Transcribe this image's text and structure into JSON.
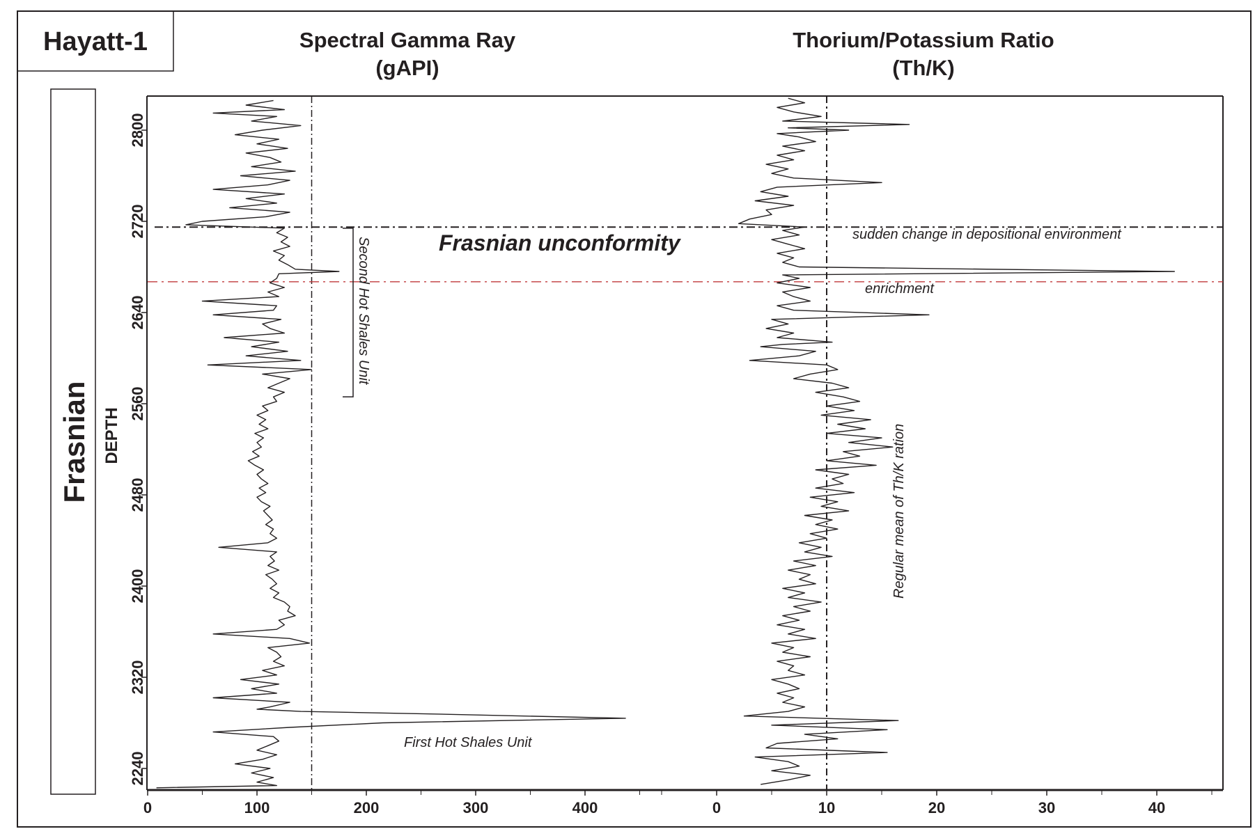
{
  "well_name": "Hayatt-1",
  "formation_label": "Frasnian",
  "depth_label": "DEPTH",
  "chart_data": [
    {
      "type": "line",
      "orientation": "vertical-log",
      "title": "Spectral Gamma Ray",
      "unit_label": "(gAPI)",
      "xlabel": "Spectral Gamma Ray (gAPI)",
      "ylabel": "DEPTH",
      "xlim": [
        0,
        480
      ],
      "ylim": [
        2830,
        2222
      ],
      "x_ticks": [
        0,
        100,
        200,
        300,
        400
      ],
      "x_minor_ticks": [
        50,
        150,
        250,
        350,
        450
      ],
      "y_ticks": [
        2800,
        2720,
        2640,
        2560,
        2480,
        2400,
        2320,
        2240
      ],
      "reference_line": {
        "value": 150,
        "style": "dash-dot"
      },
      "series": [
        {
          "name": "GR",
          "depth": [
            2826,
            2822,
            2818,
            2815,
            2812,
            2808,
            2804,
            2800,
            2796,
            2792,
            2788,
            2784,
            2780,
            2776,
            2772,
            2768,
            2764,
            2760,
            2756,
            2752,
            2748,
            2744,
            2740,
            2736,
            2732,
            2728,
            2724,
            2720,
            2717,
            2714,
            2710,
            2706,
            2702,
            2698,
            2694,
            2690,
            2686,
            2682,
            2678,
            2676,
            2674,
            2670,
            2666,
            2662,
            2658,
            2654,
            2650,
            2646,
            2642,
            2638,
            2634,
            2630,
            2626,
            2622,
            2618,
            2614,
            2610,
            2606,
            2602,
            2598,
            2594,
            2590,
            2586,
            2582,
            2578,
            2574,
            2570,
            2566,
            2562,
            2558,
            2554,
            2550,
            2546,
            2542,
            2538,
            2534,
            2530,
            2526,
            2522,
            2518,
            2514,
            2510,
            2506,
            2502,
            2498,
            2494,
            2490,
            2486,
            2482,
            2478,
            2474,
            2470,
            2466,
            2462,
            2458,
            2454,
            2450,
            2446,
            2442,
            2438,
            2434,
            2430,
            2426,
            2422,
            2418,
            2414,
            2410,
            2406,
            2402,
            2398,
            2394,
            2390,
            2386,
            2382,
            2378,
            2374,
            2370,
            2366,
            2362,
            2358,
            2354,
            2350,
            2346,
            2342,
            2338,
            2334,
            2330,
            2326,
            2322,
            2318,
            2314,
            2310,
            2306,
            2302,
            2298,
            2294,
            2292,
            2290,
            2288,
            2284,
            2280,
            2276,
            2272,
            2268,
            2264,
            2260,
            2256,
            2252,
            2248,
            2244,
            2240,
            2236,
            2232,
            2228,
            2225,
            2223
          ],
          "values": [
            115,
            90,
            125,
            60,
            118,
            95,
            140,
            105,
            80,
            120,
            100,
            128,
            90,
            112,
            122,
            95,
            135,
            85,
            130,
            110,
            60,
            125,
            90,
            118,
            75,
            130,
            108,
            50,
            35,
            125,
            118,
            128,
            122,
            130,
            115,
            125,
            120,
            128,
            135,
            175,
            120,
            118,
            112,
            125,
            110,
            120,
            50,
            118,
            115,
            60,
            122,
            105,
            112,
            125,
            70,
            120,
            95,
            128,
            90,
            140,
            55,
            150,
            105,
            130,
            120,
            110,
            125,
            115,
            118,
            105,
            110,
            100,
            108,
            102,
            110,
            98,
            106,
            100,
            104,
            96,
            102,
            92,
            98,
            106,
            100,
            104,
            110,
            102,
            108,
            100,
            104,
            112,
            106,
            110,
            114,
            108,
            115,
            112,
            118,
            110,
            65,
            118,
            112,
            116,
            110,
            120,
            108,
            114,
            118,
            112,
            120,
            115,
            125,
            130,
            128,
            135,
            120,
            125,
            118,
            60,
            130,
            148,
            110,
            118,
            122,
            115,
            125,
            105,
            118,
            85,
            120,
            95,
            118,
            60,
            130,
            112,
            100,
            140,
            250,
            437,
            215,
            130,
            60,
            115,
            120,
            110,
            100,
            118,
            105,
            80,
            112,
            95,
            115,
            100,
            118,
            8
          ]
        }
      ]
    },
    {
      "type": "line",
      "orientation": "vertical-log",
      "title": "Thorium/Potassium Ratio",
      "unit_label": "(Th/K)",
      "xlabel": "Thorium/Potassium Ratio (Th/K)",
      "ylabel": "DEPTH",
      "xlim": [
        0,
        46
      ],
      "ylim": [
        2830,
        2222
      ],
      "x_ticks": [
        0,
        10,
        20,
        30,
        40
      ],
      "x_minor_ticks": [
        5,
        15,
        25,
        35,
        45
      ],
      "reference_line": {
        "value": 10,
        "style": "dash-dot",
        "label": "Regular mean of Th/K ration"
      },
      "series": [
        {
          "name": "Th/K",
          "depth": [
            2828,
            2824,
            2820,
            2816,
            2812,
            2808,
            2805,
            2802,
            2800,
            2797,
            2794,
            2790,
            2786,
            2782,
            2778,
            2774,
            2770,
            2766,
            2762,
            2758,
            2754,
            2750,
            2746,
            2742,
            2738,
            2734,
            2730,
            2726,
            2722,
            2718,
            2715,
            2712,
            2708,
            2704,
            2700,
            2696,
            2692,
            2688,
            2684,
            2680,
            2676,
            2673,
            2670,
            2666,
            2662,
            2658,
            2654,
            2650,
            2646,
            2642,
            2638,
            2634,
            2630,
            2626,
            2622,
            2618,
            2614,
            2612,
            2610,
            2606,
            2602,
            2598,
            2594,
            2590,
            2586,
            2582,
            2578,
            2574,
            2570,
            2566,
            2562,
            2558,
            2554,
            2550,
            2546,
            2542,
            2538,
            2534,
            2530,
            2526,
            2522,
            2518,
            2514,
            2510,
            2506,
            2502,
            2498,
            2494,
            2490,
            2486,
            2482,
            2478,
            2474,
            2470,
            2466,
            2462,
            2458,
            2454,
            2450,
            2446,
            2442,
            2438,
            2434,
            2430,
            2426,
            2422,
            2418,
            2414,
            2410,
            2406,
            2402,
            2398,
            2394,
            2390,
            2386,
            2382,
            2378,
            2374,
            2370,
            2366,
            2362,
            2358,
            2354,
            2350,
            2346,
            2342,
            2338,
            2334,
            2330,
            2326,
            2322,
            2318,
            2314,
            2310,
            2306,
            2302,
            2298,
            2294,
            2290,
            2286,
            2282,
            2278,
            2274,
            2270,
            2266,
            2262,
            2258,
            2254,
            2250,
            2246,
            2242,
            2238,
            2234,
            2230,
            2226,
            2223
          ],
          "values": [
            6.5,
            8,
            5.5,
            7,
            9.5,
            6,
            17.5,
            6.5,
            12,
            5.5,
            7.5,
            9,
            6,
            8,
            5.5,
            7,
            4.5,
            6.5,
            5,
            7,
            15,
            5.5,
            4,
            6.5,
            3.5,
            7,
            4.5,
            5,
            3,
            2,
            8,
            6,
            7.5,
            5,
            6.5,
            8,
            5.5,
            7,
            6,
            7.5,
            41.6,
            6,
            7.5,
            5.5,
            8.5,
            6,
            7,
            8.5,
            5.5,
            7,
            19.3,
            5,
            6.5,
            4.5,
            7,
            5.5,
            10.5,
            6,
            4,
            9,
            7.5,
            3,
            10,
            11,
            8.5,
            7,
            10.5,
            12,
            9,
            11.5,
            13,
            10,
            12.5,
            9.5,
            14,
            11,
            13.5,
            10,
            15,
            12,
            16,
            11.5,
            13,
            10,
            14.5,
            9,
            12,
            10.5,
            11.5,
            9,
            12.5,
            8.5,
            11,
            9.5,
            12,
            8,
            10.5,
            9,
            11,
            8.5,
            10,
            7.5,
            9.5,
            8,
            10.5,
            7,
            9,
            6.5,
            8.5,
            7.5,
            9,
            6,
            8,
            6.5,
            9.5,
            7,
            8.5,
            6,
            7.5,
            5.5,
            8,
            6.5,
            9,
            5,
            7,
            6,
            8.5,
            5.5,
            7,
            6.5,
            8,
            5,
            6.5,
            7.5,
            5.5,
            7,
            6,
            8,
            6.5,
            2.5,
            16.5,
            5,
            15.5,
            8,
            11,
            5.5,
            4.5,
            15.5,
            3.5,
            6.5,
            7.5,
            5,
            8.5,
            6.5,
            4
          ]
        }
      ]
    }
  ],
  "annotations": {
    "unconformity_label": "Frasnian unconformity",
    "unconformity_depth": 2715,
    "sudden_change": "sudden change in depositional environment",
    "enrichment": "enrichment",
    "enrichment_depth": 2667,
    "second_hot_shales": "Second Hot Shales Unit",
    "second_hot_shales_range": [
      2714,
      2566
    ],
    "first_hot_shales": "First Hot Shales Unit",
    "regular_mean": "Regular mean of Th/K ration"
  },
  "colors": {
    "ink": "#231f20",
    "red_line": "#c0393b"
  }
}
